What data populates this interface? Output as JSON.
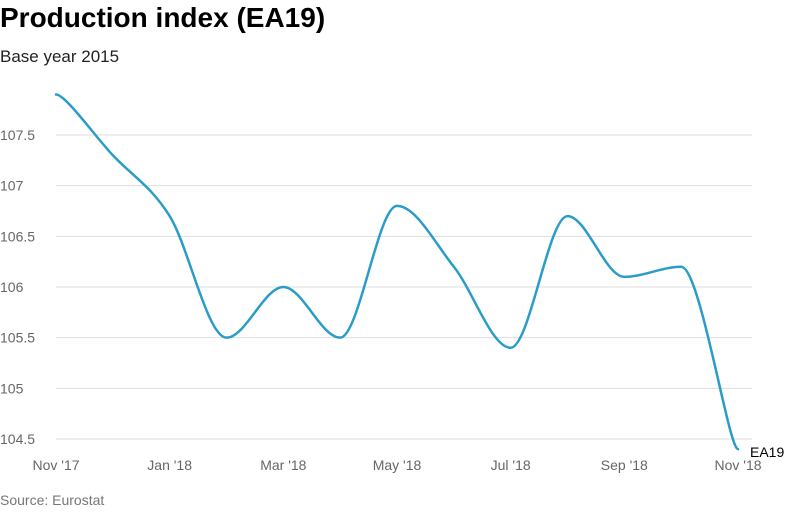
{
  "chart": {
    "title": "Production index (EA19)",
    "subtitle": "Base year 2015",
    "source": "Source: Eurostat"
  },
  "colors": {
    "line": "#2a9cc8",
    "grid": "#dddddd",
    "tick_text": "#666666"
  },
  "chart_data": {
    "type": "line",
    "title": "Production index (EA19)",
    "subtitle": "Base year 2015",
    "xlabel": "",
    "ylabel": "",
    "x": [
      "Nov '17",
      "Dec '17",
      "Jan '18",
      "Feb '18",
      "Mar '18",
      "Apr '18",
      "May '18",
      "Jun '18",
      "Jul '18",
      "Aug '18",
      "Sep '18",
      "Oct '18",
      "Nov '18"
    ],
    "x_tick_labels": [
      "Nov '17",
      "Jan '18",
      "Mar '18",
      "May '18",
      "Jul '18",
      "Sep '18",
      "Nov '18"
    ],
    "y_tick_labels": [
      "104.5",
      "105",
      "105.5",
      "106",
      "106.5",
      "107",
      "107.5"
    ],
    "ylim": [
      104.5,
      108.0
    ],
    "grid": true,
    "series": [
      {
        "name": "EA19",
        "values": [
          107.9,
          107.3,
          106.7,
          105.5,
          106.0,
          105.5,
          106.8,
          106.2,
          105.4,
          106.7,
          106.1,
          106.2,
          104.4
        ]
      }
    ]
  }
}
